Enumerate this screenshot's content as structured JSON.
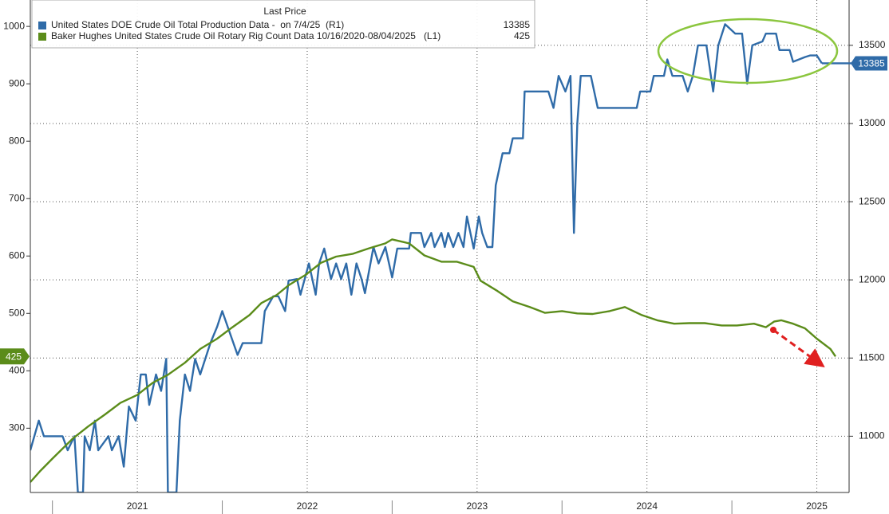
{
  "chart_data": {
    "type": "line",
    "legend_header": "Last Price",
    "xlim": [
      2020.87,
      2025.69
    ],
    "xticks": [
      {
        "value": 2021.5,
        "label": "2021"
      },
      {
        "value": 2022.5,
        "label": "2022"
      },
      {
        "value": 2023.5,
        "label": "2023"
      },
      {
        "value": 2024.5,
        "label": "2024"
      },
      {
        "value": 2025.5,
        "label": "2025"
      }
    ],
    "ylim": [
      188,
      1046
    ],
    "yticks": [
      300,
      400,
      500,
      600,
      700,
      800,
      900,
      1000
    ],
    "y2lim": [
      10640,
      13790
    ],
    "y2ticks": [
      11000,
      11500,
      12000,
      12500,
      13000,
      13500
    ],
    "grid": true,
    "series": [
      {
        "name": "United States DOE Crude Oil Total Production Data -  on 7/4/25  (R1)",
        "color": "#2f6ba8",
        "axis": "y2",
        "last_price": 13385,
        "x": [
          2020.87,
          2020.92,
          2020.95,
          2021.06,
          2021.09,
          2021.13,
          2021.15,
          2021.18,
          2021.19,
          2021.22,
          2021.25,
          2021.27,
          2021.33,
          2021.35,
          2021.39,
          2021.42,
          2021.45,
          2021.49,
          2021.52,
          2021.55,
          2021.57,
          2021.61,
          2021.64,
          2021.67,
          2021.68,
          2021.73,
          2021.75,
          2021.78,
          2021.81,
          2021.84,
          2021.87,
          2021.93,
          2021.97,
          2022.0,
          2022.04,
          2022.09,
          2022.12,
          2022.23,
          2022.25,
          2022.3,
          2022.33,
          2022.37,
          2022.39,
          2022.44,
          2022.46,
          2022.51,
          2022.55,
          2022.57,
          2022.6,
          2022.64,
          2022.67,
          2022.7,
          2022.73,
          2022.76,
          2022.79,
          2022.82,
          2022.84,
          2022.89,
          2022.92,
          2022.96,
          2023.0,
          2023.03,
          2023.1,
          2023.11,
          2023.17,
          2023.19,
          2023.23,
          2023.25,
          2023.29,
          2023.31,
          2023.33,
          2023.36,
          2023.39,
          2023.42,
          2023.44,
          2023.48,
          2023.51,
          2023.53,
          2023.56,
          2023.59,
          2023.61,
          2023.65,
          2023.69,
          2023.71,
          2023.77,
          2023.78,
          2023.92,
          2023.95,
          2023.98,
          2024.02,
          2024.05,
          2024.07,
          2024.09,
          2024.11,
          2024.17,
          2024.21,
          2024.44,
          2024.46,
          2024.52,
          2024.54,
          2024.6,
          2024.62,
          2024.65,
          2024.71,
          2024.74,
          2024.77,
          2024.8,
          2024.85,
          2024.89,
          2024.92,
          2024.96,
          2025.02,
          2025.06,
          2025.09,
          2025.12,
          2025.18,
          2025.2,
          2025.26,
          2025.28,
          2025.34,
          2025.36,
          2025.43,
          2025.46,
          2025.5,
          2025.53
        ],
        "values": [
          10910,
          11100,
          11000,
          11000,
          10910,
          11000,
          10640,
          10640,
          11000,
          10910,
          11100,
          10910,
          11000,
          10910,
          11000,
          10805,
          11190,
          11100,
          11395,
          11395,
          11200,
          11395,
          11290,
          11495,
          10640,
          10640,
          11100,
          11395,
          11290,
          11495,
          11395,
          11595,
          11700,
          11800,
          11675,
          11520,
          11595,
          11595,
          11800,
          11895,
          11895,
          11800,
          11995,
          12005,
          11905,
          12105,
          11905,
          12105,
          12200,
          12005,
          12105,
          12005,
          12105,
          11905,
          12105,
          12005,
          11915,
          12210,
          12105,
          12210,
          12015,
          12200,
          12200,
          12300,
          12300,
          12210,
          12300,
          12210,
          12300,
          12210,
          12300,
          12210,
          12300,
          12210,
          12405,
          12200,
          12405,
          12300,
          12210,
          12210,
          12605,
          12810,
          12810,
          12905,
          12905,
          13205,
          13205,
          13100,
          13305,
          13205,
          13305,
          12300,
          13000,
          13305,
          13305,
          13100,
          13100,
          13205,
          13205,
          13305,
          13305,
          13410,
          13305,
          13305,
          13205,
          13305,
          13500,
          13500,
          13205,
          13500,
          13635,
          13575,
          13575,
          13255,
          13500,
          13525,
          13575,
          13575,
          13470,
          13470,
          13395,
          13425,
          13435,
          13435,
          13385
        ]
      },
      {
        "name": "Baker Hughes United States Crude Oil Rotary Rig Count Data 10/16/2020-08/04/2025   (L1)",
        "color": "#5b8c1a",
        "axis": "y",
        "last_price": 425,
        "x": [
          2020.87,
          2020.93,
          2021.0,
          2021.12,
          2021.21,
          2021.31,
          2021.4,
          2021.5,
          2021.59,
          2021.68,
          2021.78,
          2021.87,
          2021.97,
          2022.06,
          2022.16,
          2022.23,
          2022.32,
          2022.39,
          2022.49,
          2022.58,
          2022.67,
          2022.77,
          2022.86,
          2022.96,
          2023.0,
          2023.1,
          2023.19,
          2023.29,
          2023.38,
          2023.48,
          2023.52,
          2023.62,
          2023.71,
          2023.81,
          2023.9,
          2024.0,
          2024.09,
          2024.18,
          2024.28,
          2024.37,
          2024.47,
          2024.56,
          2024.66,
          2024.75,
          2024.84,
          2024.94,
          2025.03,
          2025.13,
          2025.2,
          2025.25,
          2025.29,
          2025.36,
          2025.43,
          2025.5,
          2025.58,
          2025.61
        ],
        "values": [
          206,
          226,
          247,
          282,
          303,
          324,
          344,
          358,
          379,
          393,
          414,
          438,
          456,
          476,
          497,
          518,
          532,
          549,
          567,
          588,
          599,
          604,
          613,
          622,
          629,
          622,
          601,
          590,
          590,
          581,
          557,
          539,
          521,
          511,
          501,
          504,
          500,
          499,
          504,
          511,
          497,
          488,
          482,
          483,
          483,
          479,
          479,
          482,
          476,
          486,
          488,
          482,
          474,
          456,
          438,
          425
        ]
      }
    ]
  }
}
